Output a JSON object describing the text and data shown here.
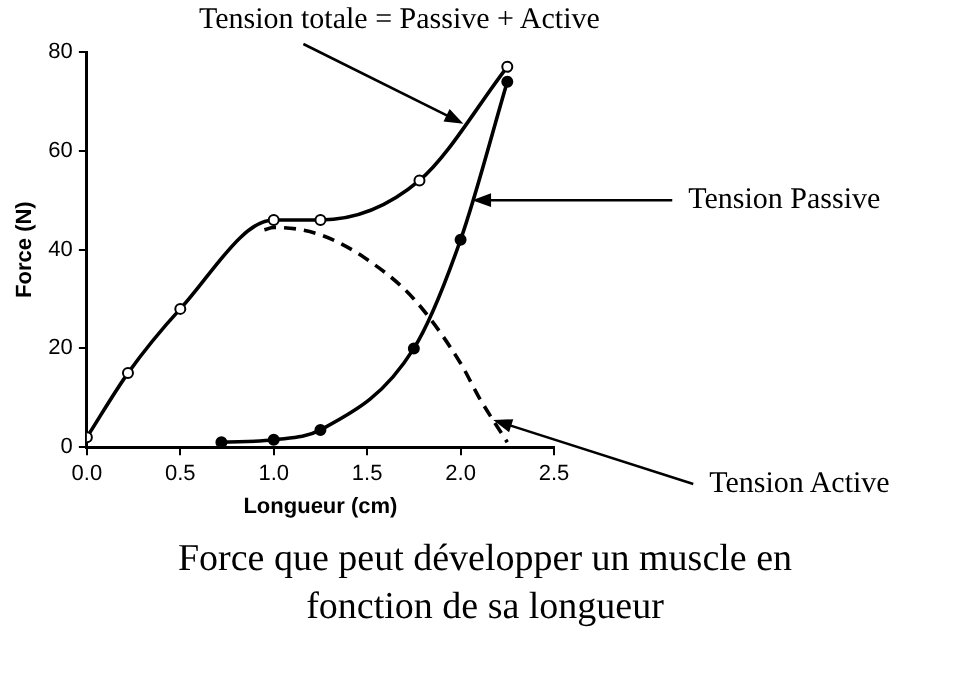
{
  "chart_data": {
    "type": "line",
    "title": "Force que peut développer un muscle en fonction de sa longueur",
    "xlabel": "Longueur (cm)",
    "ylabel": "Force (N)",
    "xlim": [
      0,
      2.5
    ],
    "xticks": [
      {
        "value": 0,
        "label": "0.0"
      },
      {
        "value": 0.5,
        "label": "0.5"
      },
      {
        "value": 1,
        "label": "1.0"
      },
      {
        "value": 1.5,
        "label": "1.5"
      },
      {
        "value": 2,
        "label": "2.0"
      },
      {
        "value": 2.5,
        "label": "2.5"
      }
    ],
    "ylim": [
      0,
      80
    ],
    "yticks": [
      0,
      20,
      40,
      60,
      80
    ],
    "grid": false,
    "legend": false,
    "series": [
      {
        "name": "Tension totale = Passive + Active",
        "color": "#000000",
        "marker": "circle",
        "line_style": "solid",
        "x": [
          0,
          0.22,
          0.5,
          1.0,
          1.25,
          1.78,
          2.25
        ],
        "values": [
          2,
          15,
          28,
          46,
          46,
          54,
          77
        ]
      },
      {
        "name": "Tension Passive",
        "color": "#000000",
        "marker": "circle",
        "line_style": "solid",
        "x": [
          0.72,
          1.0,
          1.25,
          1.75,
          2.0,
          2.25
        ],
        "values": [
          1,
          1.5,
          3.5,
          20,
          42,
          74
        ]
      },
      {
        "name": "Tension Active",
        "color": "#000000",
        "marker": "none",
        "line_style": "dashed",
        "x": [
          0.95,
          1.0,
          1.25,
          1.5,
          1.75,
          2.0,
          2.1,
          2.25
        ],
        "values": [
          44,
          44.5,
          43,
          38,
          30,
          17,
          10,
          1
        ]
      }
    ]
  }
}
